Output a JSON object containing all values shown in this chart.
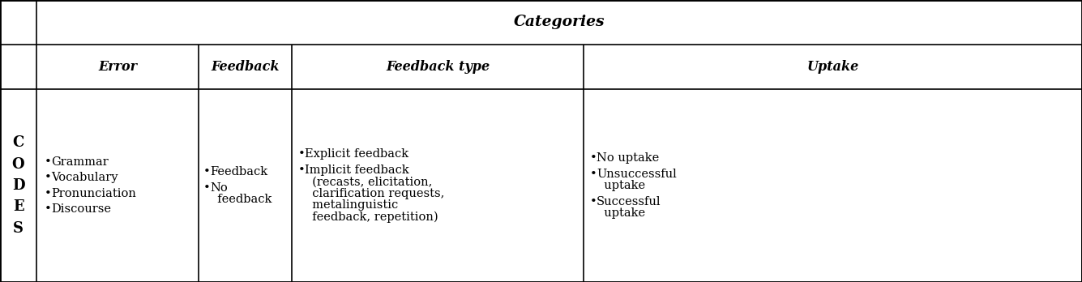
{
  "title": "Categories",
  "header_row": [
    "Error",
    "Feedback",
    "Feedback type",
    "Uptake"
  ],
  "codes_label": [
    "C",
    "O",
    "D",
    "E",
    "S"
  ],
  "col1_items": [
    "Grammar",
    "Vocabulary",
    "Pronunciation",
    "Discourse"
  ],
  "col2_items": [
    "Feedback",
    "No\n  feedback"
  ],
  "col3_items": [
    "Explicit feedback",
    "Implicit feedback\n  (recasts, elicitation,\n  clarification requests,\n  metalinguistic\n  feedback, repetition)"
  ],
  "col4_items": [
    "No uptake",
    "Unsuccessful\n  uptake",
    "Successful\n  uptake"
  ],
  "bg_color": "#ffffff",
  "border_color": "#000000",
  "text_color": "#000000",
  "font_size": 10.5,
  "header_font_size": 11.5,
  "title_font_size": 13.5,
  "codes_font_size": 13
}
